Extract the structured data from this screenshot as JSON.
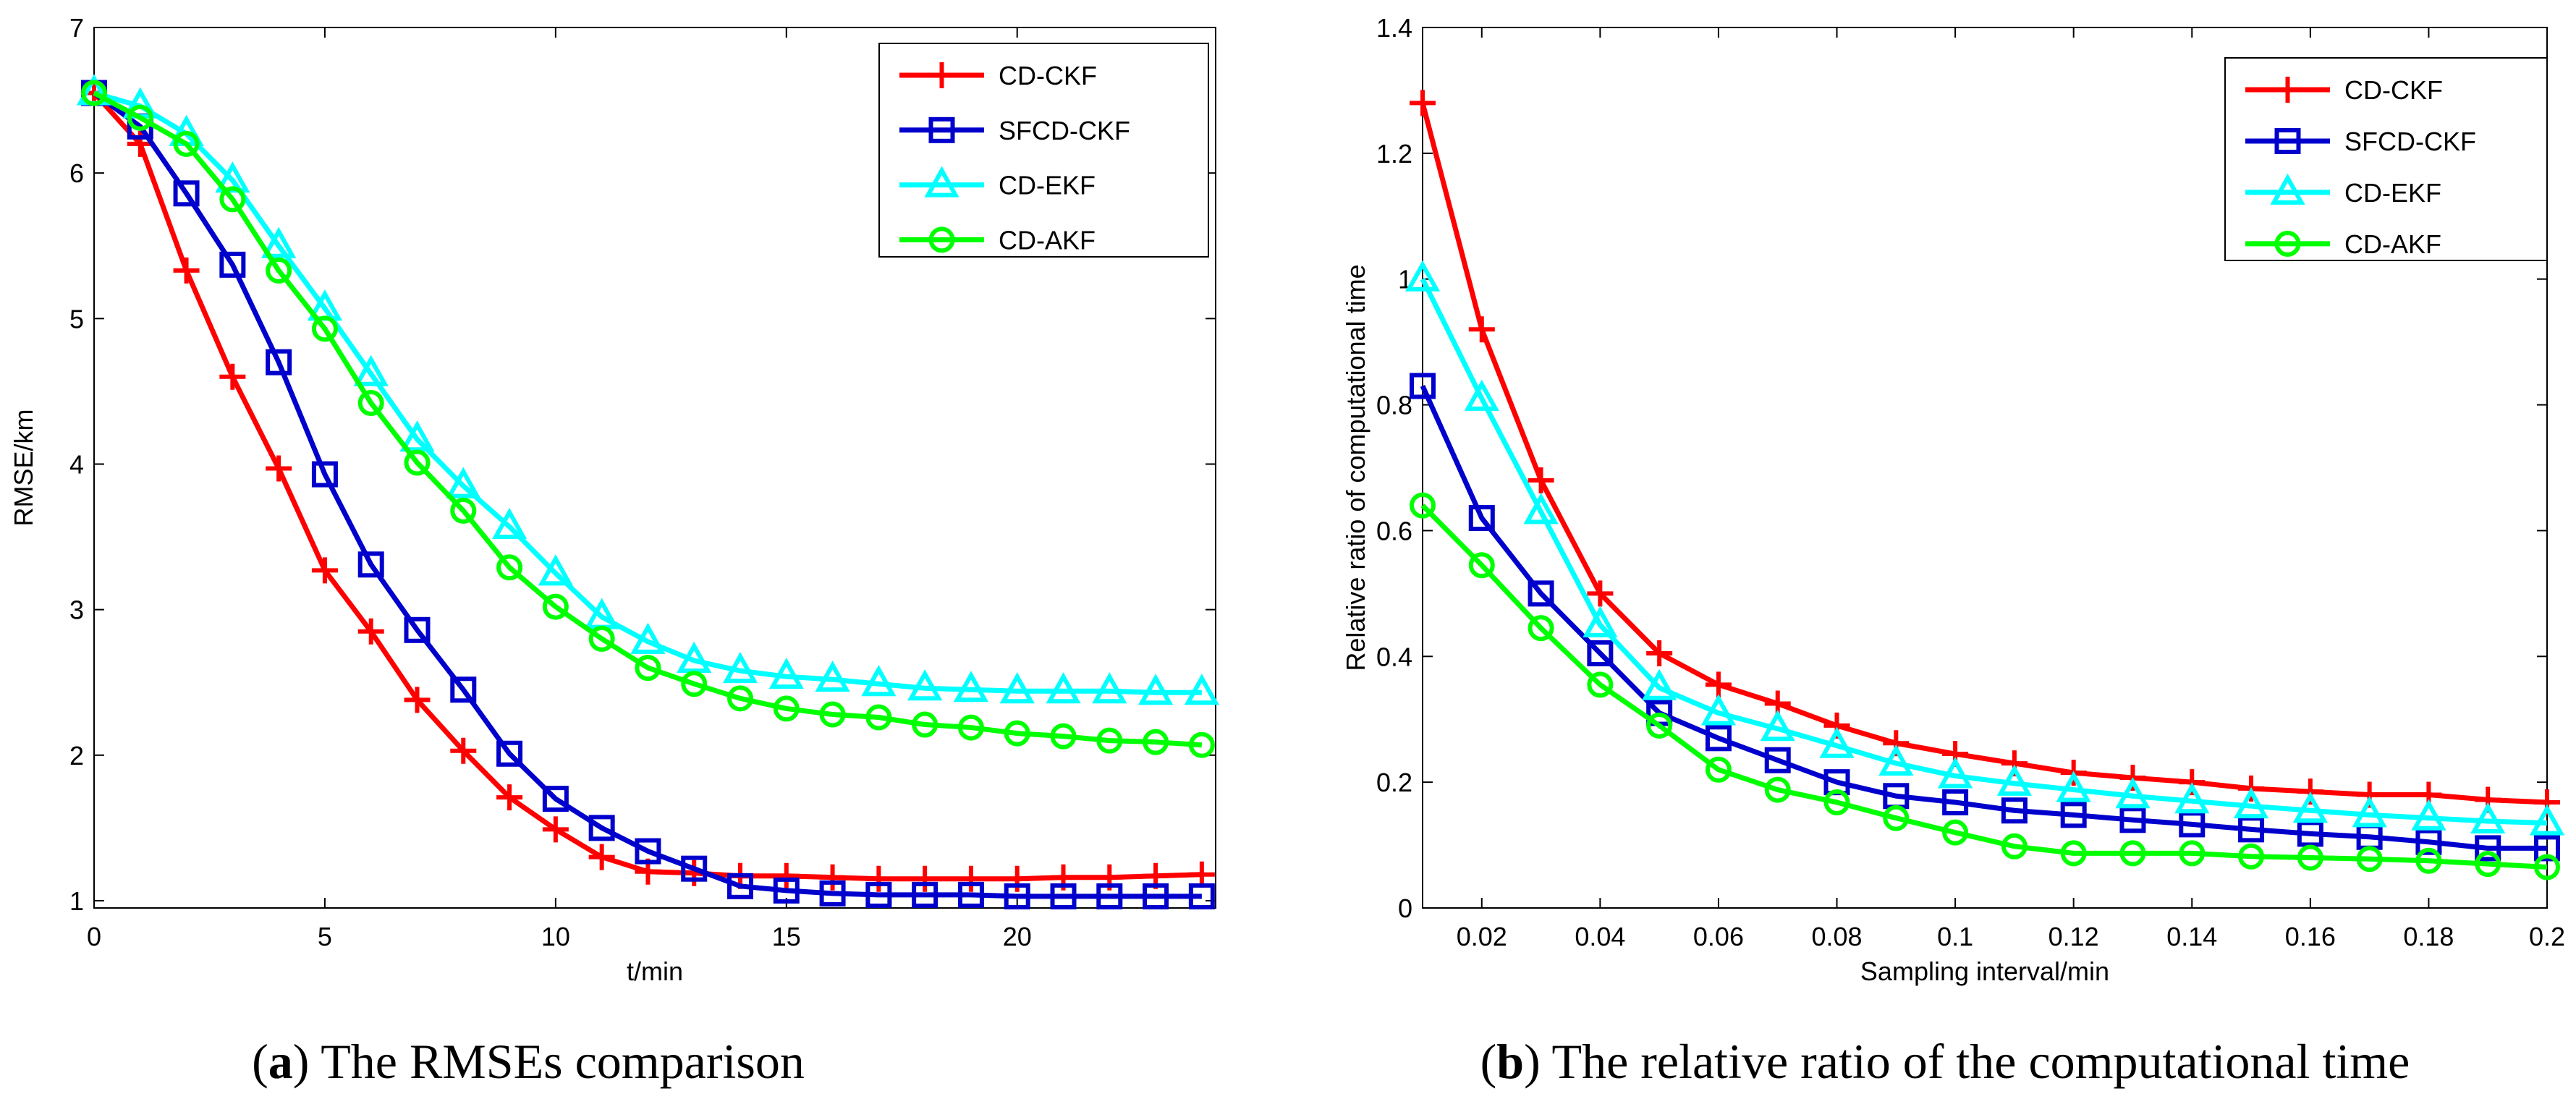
{
  "chart_data": [
    {
      "type": "line",
      "caption_letter": "a",
      "caption_text": " The RMSEs comparison",
      "title": "",
      "xlabel": "t/min",
      "ylabel": "RMSE/km",
      "xlim": [
        0,
        24.3
      ],
      "ylim": [
        0.95,
        7
      ],
      "xticks": [
        0,
        5,
        10,
        15,
        20
      ],
      "yticks": [
        1,
        2,
        3,
        4,
        5,
        6,
        7
      ],
      "grid": false,
      "legend_position": "top-right",
      "series": [
        {
          "name": "CD-CKF",
          "color": "#ff0000",
          "marker": "plus",
          "x": [
            0,
            1,
            2,
            3,
            4,
            5,
            6,
            7,
            8,
            9,
            10,
            11,
            12,
            13,
            14,
            15,
            16,
            17,
            18,
            19,
            20,
            21,
            22,
            23,
            24
          ],
          "values": [
            6.55,
            6.2,
            5.33,
            4.6,
            3.97,
            3.27,
            2.85,
            2.38,
            2.03,
            1.71,
            1.49,
            1.3,
            1.2,
            1.19,
            1.17,
            1.17,
            1.16,
            1.15,
            1.15,
            1.15,
            1.15,
            1.16,
            1.16,
            1.17,
            1.18
          ]
        },
        {
          "name": "SFCD-CKF",
          "color": "#0000cc",
          "marker": "square",
          "x": [
            0,
            1,
            2,
            3,
            4,
            5,
            6,
            7,
            8,
            9,
            10,
            11,
            12,
            13,
            14,
            15,
            16,
            17,
            18,
            19,
            20,
            21,
            22,
            23,
            24
          ],
          "values": [
            6.55,
            6.32,
            5.86,
            5.37,
            4.7,
            3.93,
            3.31,
            2.86,
            2.45,
            2.01,
            1.7,
            1.5,
            1.34,
            1.22,
            1.1,
            1.07,
            1.05,
            1.04,
            1.04,
            1.04,
            1.03,
            1.03,
            1.03,
            1.03,
            1.03
          ]
        },
        {
          "name": "CD-EKF",
          "color": "#00ffff",
          "marker": "triangle",
          "x": [
            0,
            1,
            2,
            3,
            4,
            5,
            6,
            7,
            8,
            9,
            10,
            11,
            12,
            13,
            14,
            15,
            16,
            17,
            18,
            19,
            20,
            21,
            22,
            23,
            24
          ],
          "values": [
            6.55,
            6.46,
            6.27,
            5.95,
            5.5,
            5.07,
            4.62,
            4.17,
            3.85,
            3.57,
            3.25,
            2.95,
            2.78,
            2.65,
            2.58,
            2.54,
            2.52,
            2.49,
            2.46,
            2.45,
            2.44,
            2.44,
            2.44,
            2.43,
            2.43
          ]
        },
        {
          "name": "CD-AKF",
          "color": "#00ff00",
          "marker": "circle",
          "x": [
            0,
            1,
            2,
            3,
            4,
            5,
            6,
            7,
            8,
            9,
            10,
            11,
            12,
            13,
            14,
            15,
            16,
            17,
            18,
            19,
            20,
            21,
            22,
            23,
            24
          ],
          "values": [
            6.55,
            6.38,
            6.2,
            5.82,
            5.33,
            4.93,
            4.42,
            4.01,
            3.68,
            3.29,
            3.02,
            2.8,
            2.6,
            2.49,
            2.39,
            2.32,
            2.28,
            2.26,
            2.21,
            2.19,
            2.15,
            2.13,
            2.1,
            2.09,
            2.07
          ]
        }
      ]
    },
    {
      "type": "line",
      "caption_letter": "b",
      "caption_text": " The relative ratio of the computational time",
      "title": "",
      "xlabel": "Sampling interval/min",
      "ylabel": "Relative ratio of computational time",
      "xlim": [
        0.01,
        0.2
      ],
      "ylim": [
        0,
        1.4
      ],
      "xticks": [
        0.02,
        0.04,
        0.06,
        0.08,
        0.1,
        0.12,
        0.14,
        0.16,
        0.18,
        0.2
      ],
      "yticks": [
        0,
        0.2,
        0.4,
        0.6,
        0.8,
        1,
        1.2,
        1.4
      ],
      "grid": false,
      "legend_position": "top-right",
      "series": [
        {
          "name": "CD-CKF",
          "color": "#ff0000",
          "marker": "plus",
          "x": [
            0.01,
            0.02,
            0.03,
            0.04,
            0.05,
            0.06,
            0.07,
            0.08,
            0.09,
            0.1,
            0.11,
            0.12,
            0.13,
            0.14,
            0.15,
            0.16,
            0.17,
            0.18,
            0.19,
            0.2
          ],
          "values": [
            1.28,
            0.92,
            0.68,
            0.5,
            0.405,
            0.355,
            0.325,
            0.29,
            0.262,
            0.245,
            0.23,
            0.215,
            0.207,
            0.2,
            0.19,
            0.185,
            0.18,
            0.18,
            0.172,
            0.168
          ]
        },
        {
          "name": "SFCD-CKF",
          "color": "#0000cc",
          "marker": "square",
          "x": [
            0.01,
            0.02,
            0.03,
            0.04,
            0.05,
            0.06,
            0.07,
            0.08,
            0.09,
            0.1,
            0.11,
            0.12,
            0.13,
            0.14,
            0.15,
            0.16,
            0.17,
            0.18,
            0.19,
            0.2
          ],
          "values": [
            0.83,
            0.62,
            0.5,
            0.405,
            0.31,
            0.27,
            0.235,
            0.2,
            0.178,
            0.168,
            0.155,
            0.148,
            0.14,
            0.133,
            0.125,
            0.118,
            0.113,
            0.105,
            0.095,
            0.095
          ]
        },
        {
          "name": "CD-EKF",
          "color": "#00ffff",
          "marker": "triangle",
          "x": [
            0.01,
            0.02,
            0.03,
            0.04,
            0.05,
            0.06,
            0.07,
            0.08,
            0.09,
            0.1,
            0.11,
            0.12,
            0.13,
            0.14,
            0.15,
            0.16,
            0.17,
            0.18,
            0.19,
            0.2
          ],
          "values": [
            1.0,
            0.81,
            0.63,
            0.45,
            0.35,
            0.31,
            0.285,
            0.258,
            0.23,
            0.21,
            0.198,
            0.188,
            0.178,
            0.17,
            0.162,
            0.155,
            0.148,
            0.143,
            0.138,
            0.135
          ]
        },
        {
          "name": "CD-AKF",
          "color": "#00ff00",
          "marker": "circle",
          "x": [
            0.01,
            0.02,
            0.03,
            0.04,
            0.05,
            0.06,
            0.07,
            0.08,
            0.09,
            0.1,
            0.11,
            0.12,
            0.13,
            0.14,
            0.15,
            0.16,
            0.17,
            0.18,
            0.19,
            0.2
          ],
          "values": [
            0.64,
            0.545,
            0.445,
            0.355,
            0.29,
            0.22,
            0.188,
            0.168,
            0.143,
            0.12,
            0.098,
            0.087,
            0.087,
            0.087,
            0.082,
            0.08,
            0.078,
            0.075,
            0.07,
            0.065
          ]
        }
      ]
    }
  ]
}
